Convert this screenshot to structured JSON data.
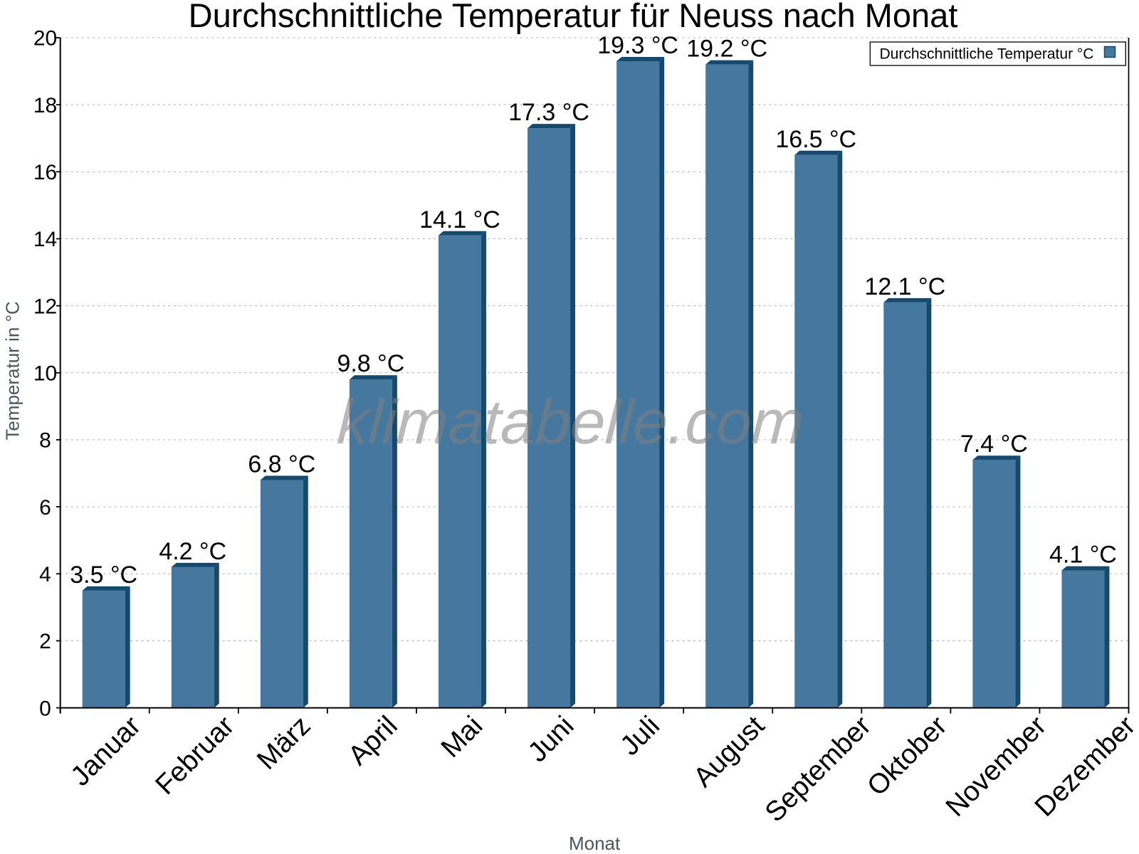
{
  "chart_data": {
    "type": "bar",
    "title": "Durchschnittliche Temperatur für Neuss nach Monat",
    "xlabel": "Monat",
    "ylabel": "Temperatur in °C",
    "categories": [
      "Januar",
      "Februar",
      "März",
      "April",
      "Mai",
      "Juni",
      "Juli",
      "August",
      "September",
      "Oktober",
      "November",
      "Dezember"
    ],
    "values": [
      3.5,
      4.2,
      6.8,
      9.8,
      14.1,
      17.3,
      19.3,
      19.2,
      16.5,
      12.1,
      7.4,
      4.1
    ],
    "value_labels": [
      "3.5 °C",
      "4.2 °C",
      "6.8 °C",
      "9.8 °C",
      "14.1 °C",
      "17.3 °C",
      "19.3 °C",
      "19.2 °C",
      "16.5 °C",
      "12.1 °C",
      "7.4 °C",
      "4.1 °C"
    ],
    "ylim": [
      0,
      20
    ],
    "ytick_step": 2,
    "ytick_labels": [
      "0",
      "2",
      "4",
      "6",
      "8",
      "10",
      "12",
      "14",
      "16",
      "18",
      "20"
    ],
    "grid": "horizontal-dotted",
    "legend": {
      "label": "Durchschnittliche Temperatur °C",
      "position": "top-right"
    },
    "watermark": "klimatabelle.com",
    "colors": {
      "bar_face": "#46789F",
      "bar_side": "#17496D",
      "axis": "#000000",
      "grid": "#ACACAC",
      "tick_label": "#000000",
      "value_label": "#000000",
      "title": "#000000",
      "axis_title": "#4A5560",
      "watermark": "rgba(128,128,128,0.55)",
      "legend_border": "#000000",
      "legend_bg": "#FFFFFF",
      "background": "#FFFFFF"
    }
  }
}
